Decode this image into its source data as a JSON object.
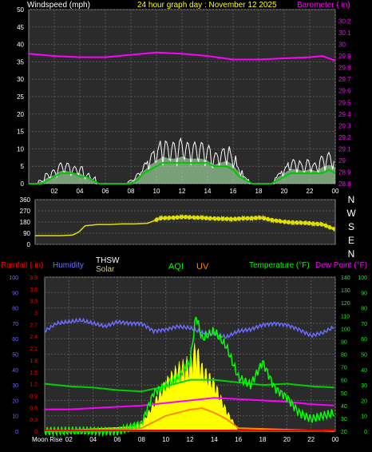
{
  "header": {
    "windspeed_label": "Windspeed (mph)",
    "date_label": "24 hour graph day : November 12 2025",
    "barometer_label": "Barometer ( in)"
  },
  "lower_header": {
    "rainfall_label": "Rainfall ( in)",
    "humidity_label": "Humidity",
    "thsw_label": "THSW",
    "solar_label": "Solar",
    "aqi_label": "AQI",
    "uv_label": "UV",
    "temperature_label": "Temperature (°F)",
    "dewpoint_label": "Dew Point (°F)"
  },
  "moonrise_label": "Moon Rise",
  "colors": {
    "background": "#000000",
    "plot_background": "#2b2b2b",
    "grid": "#555555",
    "wind_speed": "#ffffff",
    "wind_gust_fill": "#b8ffb8",
    "wind_avg": "#00c800",
    "barometer": "#ff00ff",
    "wind_direction": "#e0e000",
    "humidity": "#6b6bff",
    "solar": "#ffff00",
    "uv": "#ff8800",
    "aqi": "#00ff00",
    "temperature": "#00d000",
    "dewpoint": "#ff00ff",
    "rainfall": "#ff0000",
    "thsw": "#ffffff"
  },
  "chart_data": [
    {
      "type": "area",
      "name": "wind",
      "x_ticks": [
        "02",
        "04",
        "06",
        "08",
        "10",
        "12",
        "14",
        "16",
        "18",
        "20",
        "22",
        "00"
      ],
      "y_left_ticks": [
        "0",
        "5",
        "10",
        "15",
        "20",
        "25",
        "30",
        "35",
        "40",
        "45",
        "50"
      ],
      "ylim_left": [
        0,
        50
      ],
      "y_right_ticks": [
        "28.8",
        "28.9",
        "29",
        "29.1",
        "29.2",
        "29.3",
        "29.4",
        "29.5",
        "29.6",
        "29.7",
        "29.8",
        "29.9",
        "30",
        "30.1",
        "30.2"
      ],
      "ylim_right": [
        28.8,
        30.3
      ],
      "series": [
        {
          "name": "Windspeed (mph)",
          "hours": [
            0,
            0.5,
            1,
            1.5,
            2,
            2.5,
            3,
            3.5,
            4,
            4.5,
            5,
            5.5,
            6,
            6.5,
            7,
            7.5,
            8,
            8.5,
            9,
            9.5,
            10,
            10.5,
            11,
            11.5,
            12,
            12.5,
            13,
            13.5,
            14,
            14.5,
            15,
            15.5,
            16,
            16.5,
            17,
            17.5,
            18,
            18.5,
            19,
            19.5,
            20,
            20.5,
            21,
            21.5,
            22,
            22.5,
            23,
            23.5,
            24
          ],
          "gust": [
            0,
            0,
            1,
            3,
            4,
            6,
            6,
            5,
            5,
            3,
            2,
            0,
            0,
            0,
            0,
            0,
            1,
            3,
            6,
            9,
            11,
            13,
            12,
            12,
            13,
            12,
            12,
            12,
            11,
            9,
            10,
            11,
            9,
            5,
            2,
            0,
            0,
            0,
            0,
            3,
            5,
            7,
            7,
            6,
            7,
            6,
            8,
            9,
            8
          ],
          "avg": [
            0,
            0,
            0,
            1,
            2,
            3,
            3,
            3,
            2,
            2,
            1,
            0,
            0,
            0,
            0,
            0,
            0,
            1,
            3,
            4,
            5,
            6,
            6,
            6,
            6,
            6,
            6,
            6,
            6,
            5,
            5,
            5,
            4,
            2,
            1,
            0,
            0,
            0,
            0,
            1,
            2,
            3,
            3,
            3,
            3,
            3,
            3,
            4,
            3
          ]
        },
        {
          "name": "Barometer ( in)",
          "hours": [
            0,
            2,
            4,
            6,
            8,
            10,
            12,
            14,
            16,
            18,
            20,
            22,
            23,
            24
          ],
          "values": [
            29.92,
            29.9,
            29.89,
            29.89,
            29.91,
            29.93,
            29.92,
            29.9,
            29.87,
            29.87,
            29.88,
            29.89,
            29.9,
            29.86
          ]
        }
      ]
    },
    {
      "type": "line",
      "name": "wind-direction",
      "y_ticks": [
        "0",
        "90",
        "180",
        "270",
        "360"
      ],
      "ylim": [
        0,
        360
      ],
      "compass": [
        "N",
        "W",
        "S",
        "E",
        "N"
      ],
      "series": [
        {
          "name": "Wind direction",
          "hours": [
            0,
            1,
            2,
            3,
            3.5,
            4,
            5,
            6,
            7,
            8,
            9,
            10,
            11,
            12,
            13,
            14,
            15,
            16,
            17,
            18,
            19,
            20,
            21,
            22,
            23,
            24
          ],
          "values": [
            70,
            70,
            70,
            75,
            100,
            150,
            160,
            160,
            165,
            165,
            170,
            210,
            215,
            220,
            215,
            210,
            205,
            205,
            210,
            215,
            195,
            180,
            175,
            170,
            160,
            120
          ]
        }
      ]
    },
    {
      "type": "line",
      "name": "combined",
      "x_ticks": [
        "02",
        "04",
        "06",
        "08",
        "10",
        "12",
        "14",
        "16",
        "18",
        "20",
        "22",
        "00"
      ],
      "rain_ticks": [
        "0",
        "0.3",
        "0.6",
        "0.9",
        "1.2",
        "1.5",
        "1.8",
        "2.1",
        "2.4",
        "2.7",
        "3",
        "3.3",
        "3.6",
        "3.9"
      ],
      "humidity_ticks": [
        "0",
        "10",
        "20",
        "30",
        "40",
        "50",
        "60",
        "70",
        "80",
        "90",
        "100"
      ],
      "temp_ticks": [
        "20",
        "30",
        "40",
        "50",
        "60",
        "70",
        "80",
        "90",
        "100",
        "110",
        "120",
        "130",
        "140"
      ],
      "aqi_ticks": [
        "0",
        "10",
        "20",
        "30",
        "40",
        "50",
        "60",
        "70",
        "80",
        "90",
        "100"
      ],
      "series": [
        {
          "name": "Humidity",
          "hours": [
            0,
            1,
            2,
            3,
            4,
            5,
            6,
            7,
            8,
            9,
            10,
            11,
            12,
            13,
            14,
            15,
            16,
            17,
            18,
            19,
            20,
            21,
            22,
            23,
            24
          ],
          "values": [
            65,
            70,
            71,
            72,
            70,
            68,
            71,
            70,
            70,
            65,
            66,
            68,
            67,
            64,
            63,
            61,
            65,
            66,
            69,
            70,
            69,
            66,
            62,
            64,
            68
          ]
        },
        {
          "name": "Temperature (°F)",
          "hours": [
            0,
            2,
            4,
            6,
            8,
            10,
            12,
            14,
            16,
            18,
            20,
            22,
            24
          ],
          "values": [
            57,
            55,
            54,
            52,
            51,
            55,
            60,
            60,
            58,
            56,
            57,
            55,
            54
          ]
        },
        {
          "name": "Dew Point (°F)",
          "hours": [
            0,
            2,
            4,
            6,
            8,
            10,
            12,
            14,
            16,
            18,
            20,
            22,
            24
          ],
          "values": [
            37,
            37,
            38,
            39,
            40,
            42,
            44,
            46,
            45,
            44,
            43,
            41,
            40
          ]
        },
        {
          "name": "Solar",
          "hours": [
            0,
            8,
            9,
            10,
            11,
            12,
            12.5,
            13,
            13.5,
            14,
            14.5,
            15,
            15.5,
            16,
            24
          ],
          "values": [
            0,
            5,
            20,
            35,
            45,
            50,
            60,
            45,
            40,
            35,
            25,
            15,
            8,
            0,
            0
          ]
        },
        {
          "name": "UV",
          "hours": [
            0,
            8,
            10,
            12,
            13,
            14,
            15,
            16,
            24
          ],
          "values": [
            0,
            2,
            10,
            14,
            15,
            12,
            8,
            2,
            0
          ]
        },
        {
          "name": "AQI",
          "hours": [
            0,
            6,
            8,
            9,
            10,
            11,
            12,
            12.5,
            13,
            14,
            15,
            16,
            17,
            18,
            19,
            20,
            21,
            22,
            23,
            24
          ],
          "values": [
            0,
            0,
            5,
            25,
            30,
            35,
            45,
            75,
            60,
            65,
            55,
            35,
            30,
            45,
            28,
            22,
            12,
            8,
            10,
            12
          ]
        }
      ]
    }
  ]
}
